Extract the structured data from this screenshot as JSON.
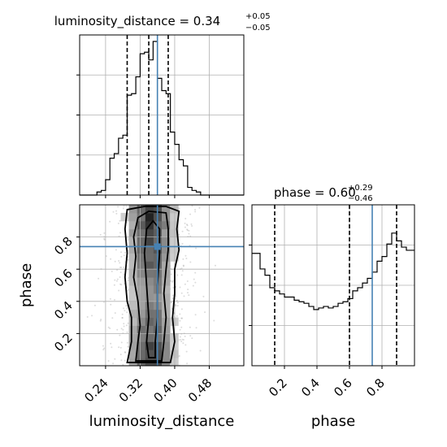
{
  "chart_data": {
    "type": "corner",
    "parameters": [
      "luminosity_distance",
      "phase"
    ],
    "truth": {
      "luminosity_distance": 0.36,
      "phase": 0.74
    },
    "colors": {
      "truth": "#4682b4",
      "hist": "#000000",
      "grid": "#b0b0b0"
    },
    "panels": {
      "luminosity_distance_hist": {
        "title_main": "luminosity_distance = 0.34",
        "title_sup": "+0.05",
        "title_sub": "−0.05",
        "xlim": [
          0.18,
          0.56
        ],
        "quantiles": [
          0.29,
          0.34,
          0.385
        ],
        "bin_edges": [
          0.18,
          0.19,
          0.2,
          0.21,
          0.22,
          0.23,
          0.24,
          0.25,
          0.26,
          0.27,
          0.28,
          0.29,
          0.3,
          0.31,
          0.32,
          0.33,
          0.34,
          0.35,
          0.36,
          0.37,
          0.38,
          0.39,
          0.4,
          0.41,
          0.42,
          0.43,
          0.44,
          0.45,
          0.46,
          0.47,
          0.48,
          0.49,
          0.5,
          0.51,
          0.52,
          0.53,
          0.54,
          0.55,
          0.56
        ],
        "counts": [
          0,
          0,
          0,
          0,
          0.02,
          0.03,
          0.1,
          0.24,
          0.27,
          0.37,
          0.39,
          0.65,
          0.66,
          0.77,
          0.92,
          0.93,
          0.88,
          1.0,
          0.76,
          0.68,
          0.66,
          0.41,
          0.33,
          0.23,
          0.19,
          0.05,
          0.03,
          0.02,
          0,
          0,
          0,
          0,
          0,
          0,
          0,
          0,
          0,
          0
        ],
        "ylim": [
          0,
          1.0
        ]
      },
      "phase_hist": {
        "title_main": "phase = 0.60",
        "title_sup": "+0.29",
        "title_sub": "−0.46",
        "xlim": [
          0.0,
          1.0
        ],
        "quantiles": [
          0.14,
          0.6,
          0.89
        ],
        "bin_edges": [
          0.0,
          0.05,
          0.08,
          0.11,
          0.14,
          0.17,
          0.2,
          0.23,
          0.26,
          0.29,
          0.32,
          0.35,
          0.38,
          0.41,
          0.44,
          0.47,
          0.5,
          0.53,
          0.56,
          0.59,
          0.62,
          0.65,
          0.68,
          0.71,
          0.74,
          0.77,
          0.8,
          0.83,
          0.86,
          0.89,
          0.92,
          0.95,
          1.0
        ],
        "counts": [
          0.72,
          0.62,
          0.58,
          0.5,
          0.48,
          0.46,
          0.44,
          0.44,
          0.42,
          0.41,
          0.4,
          0.38,
          0.36,
          0.37,
          0.38,
          0.37,
          0.38,
          0.4,
          0.41,
          0.43,
          0.48,
          0.5,
          0.53,
          0.56,
          0.6,
          0.67,
          0.7,
          0.78,
          0.85,
          0.8,
          0.76,
          0.74
        ],
        "ylim": [
          0,
          1.0
        ]
      },
      "joint": {
        "xlim": [
          0.18,
          0.56
        ],
        "ylim": [
          0.0,
          1.0
        ],
        "contours": [
          [
            [
              0.29,
              0.02
            ],
            [
              0.3,
              0.15
            ],
            [
              0.3,
              0.3
            ],
            [
              0.29,
              0.4
            ],
            [
              0.285,
              0.55
            ],
            [
              0.29,
              0.7
            ],
            [
              0.285,
              0.85
            ],
            [
              0.29,
              0.97
            ],
            [
              0.33,
              0.99
            ],
            [
              0.38,
              0.99
            ],
            [
              0.41,
              0.96
            ],
            [
              0.405,
              0.85
            ],
            [
              0.41,
              0.72
            ],
            [
              0.4,
              0.6
            ],
            [
              0.4,
              0.45
            ],
            [
              0.395,
              0.3
            ],
            [
              0.4,
              0.15
            ],
            [
              0.39,
              0.02
            ]
          ],
          [
            [
              0.31,
              0.03
            ],
            [
              0.315,
              0.15
            ],
            [
              0.32,
              0.25
            ],
            [
              0.315,
              0.4
            ],
            [
              0.305,
              0.55
            ],
            [
              0.31,
              0.68
            ],
            [
              0.305,
              0.8
            ],
            [
              0.315,
              0.92
            ],
            [
              0.34,
              0.96
            ],
            [
              0.38,
              0.95
            ],
            [
              0.385,
              0.85
            ],
            [
              0.385,
              0.72
            ],
            [
              0.38,
              0.6
            ],
            [
              0.375,
              0.45
            ],
            [
              0.38,
              0.3
            ],
            [
              0.375,
              0.15
            ],
            [
              0.37,
              0.03
            ]
          ],
          [
            [
              0.34,
              0.05
            ],
            [
              0.335,
              0.15
            ],
            [
              0.34,
              0.3
            ],
            [
              0.335,
              0.5
            ],
            [
              0.33,
              0.7
            ],
            [
              0.335,
              0.85
            ],
            [
              0.35,
              0.9
            ],
            [
              0.365,
              0.85
            ],
            [
              0.365,
              0.7
            ],
            [
              0.36,
              0.5
            ],
            [
              0.36,
              0.3
            ],
            [
              0.355,
              0.15
            ],
            [
              0.355,
              0.05
            ]
          ]
        ]
      }
    },
    "x_ticks_ld": [
      0.24,
      0.32,
      0.4,
      0.48
    ],
    "x_tick_labels_ld": [
      "0.24",
      "0.32",
      "0.40",
      "0.48"
    ],
    "y_ticks_phase": [
      0.2,
      0.4,
      0.6,
      0.8
    ],
    "y_tick_labels_phase": [
      "0.2",
      "0.4",
      "0.6",
      "0.8"
    ],
    "x_ticks_phase": [
      0.2,
      0.4,
      0.6,
      0.8
    ],
    "x_tick_labels_phase": [
      "0.2",
      "0.4",
      "0.6",
      "0.8"
    ],
    "xlabel_ld": "luminosity_distance",
    "xlabel_phase": "phase",
    "ylabel_phase": "phase"
  }
}
